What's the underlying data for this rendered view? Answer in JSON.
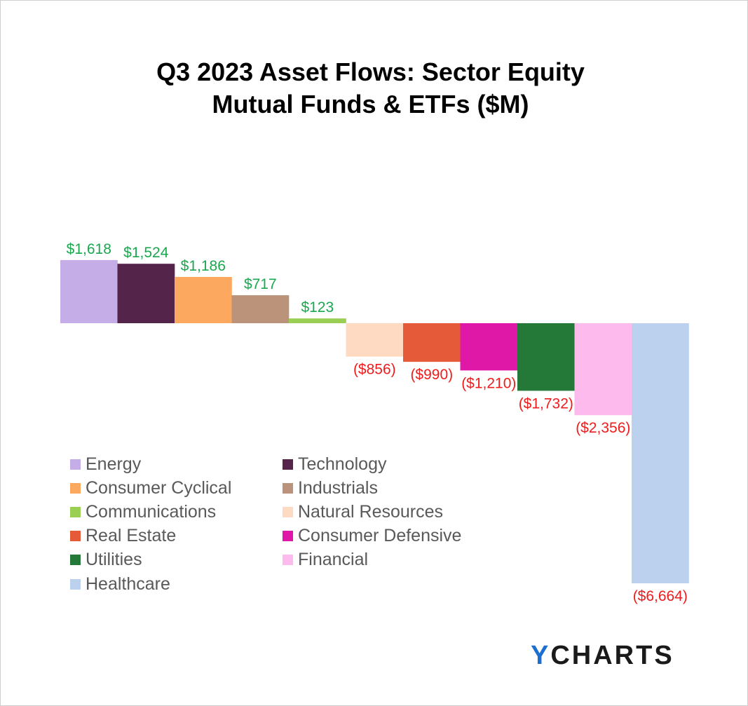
{
  "chart_data": {
    "type": "bar",
    "title_line1": "Q3 2023 Asset Flows: Sector Equity",
    "title_line2": "Mutual Funds & ETFs ($M)",
    "categories": [
      "Energy",
      "Technology",
      "Consumer Cyclical",
      "Industrials",
      "Communications",
      "Natural Resources",
      "Real Estate",
      "Consumer Defensive",
      "Utilities",
      "Financial",
      "Healthcare"
    ],
    "values": [
      1618,
      1524,
      1186,
      717,
      123,
      -856,
      -990,
      -1210,
      -1732,
      -2356,
      -6664
    ],
    "data_labels": [
      "$1,618",
      "$1,524",
      "$1,186",
      "$717",
      "$123",
      "($856)",
      "($990)",
      "($1,210)",
      "($1,732)",
      "($2,356)",
      "($6,664)"
    ],
    "colors": [
      "#c5aee7",
      "#54244a",
      "#fda85f",
      "#bb937a",
      "#9bcf53",
      "#fedac2",
      "#e55a38",
      "#df18a8",
      "#257938",
      "#fdbaec",
      "#bcd1ee"
    ],
    "positive_label_color": "#1aa84e",
    "negative_label_color": "#ee1c1c",
    "xlabel": "",
    "ylabel": "",
    "grid": false,
    "legend_position": "bottom-left"
  },
  "branding": {
    "logo_accent": "Y",
    "logo_rest": "CHARTS"
  }
}
